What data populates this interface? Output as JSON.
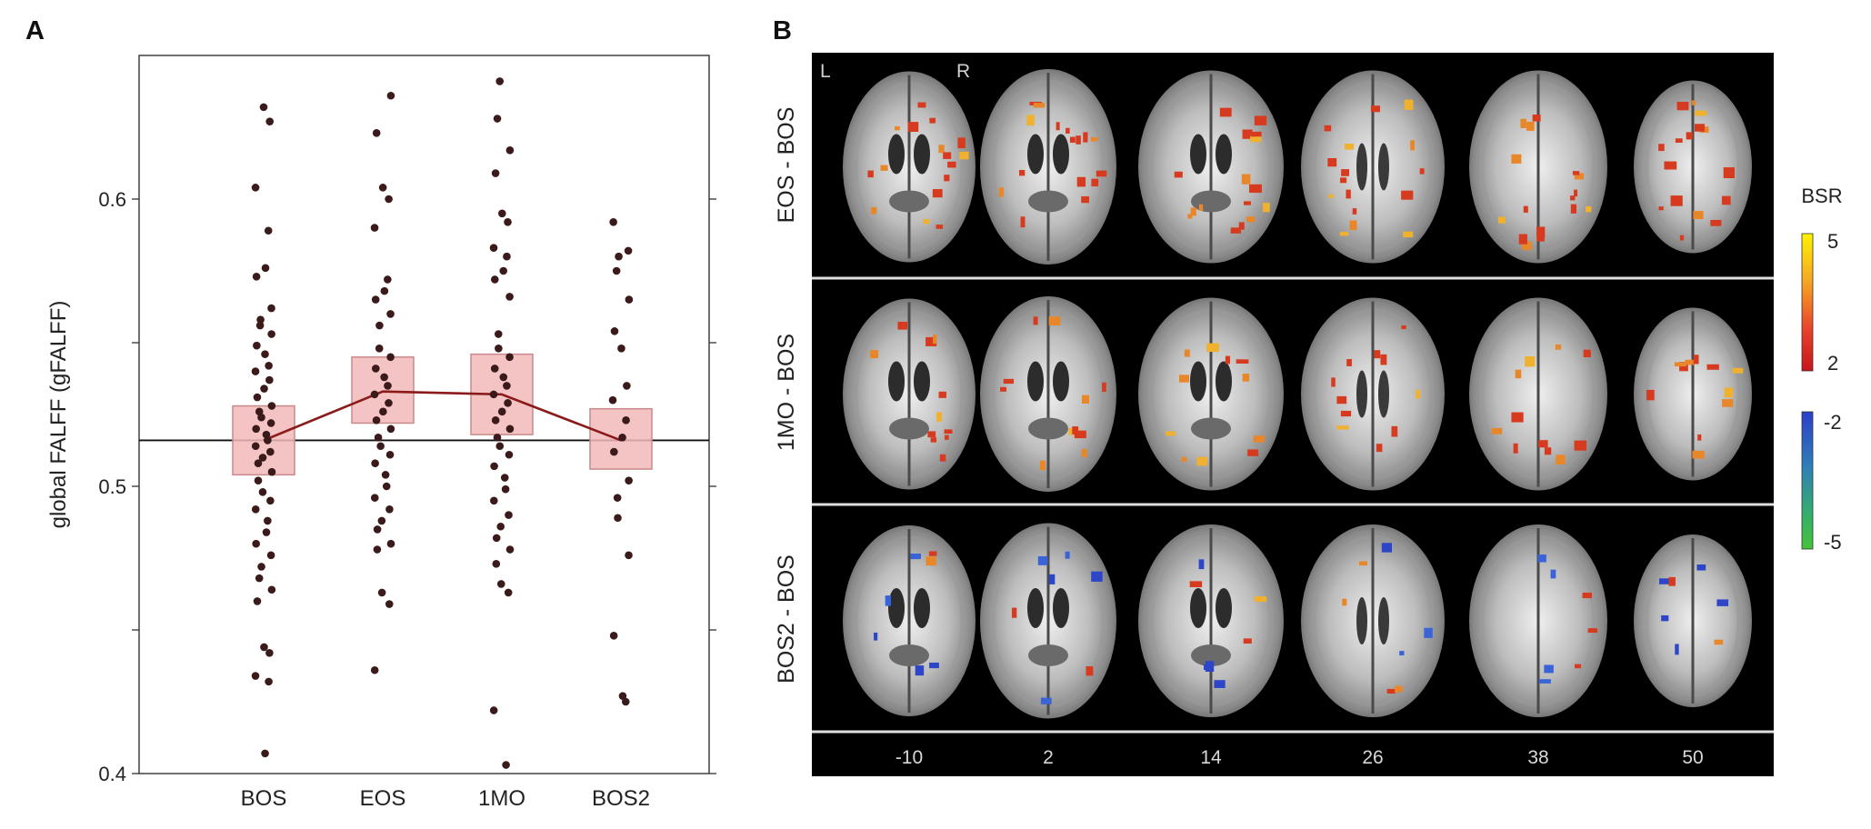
{
  "panels": {
    "a_letter": "A",
    "b_letter": "B"
  },
  "chart_data": {
    "type": "scatter",
    "ylabel": "global FALFF  (gFALFF)",
    "categories": [
      "BOS",
      "EOS",
      "1MO",
      "BOS2"
    ],
    "ylim": [
      0.4,
      0.65
    ],
    "yticks": [
      0.4,
      0.45,
      0.5,
      0.55,
      0.6
    ],
    "ytick_labels": [
      "0.4",
      "",
      "0.5",
      "",
      "0.6"
    ],
    "reference_line": 0.516,
    "means": [
      0.516,
      0.533,
      0.532,
      0.516
    ],
    "ci_low": [
      0.504,
      0.522,
      0.518,
      0.506
    ],
    "ci_high": [
      0.528,
      0.545,
      0.546,
      0.527
    ],
    "points": [
      [
        0.632,
        0.627,
        0.604,
        0.589,
        0.576,
        0.573,
        0.562,
        0.558,
        0.556,
        0.553,
        0.549,
        0.546,
        0.542,
        0.54,
        0.537,
        0.534,
        0.531,
        0.528,
        0.526,
        0.524,
        0.522,
        0.52,
        0.518,
        0.516,
        0.514,
        0.512,
        0.51,
        0.508,
        0.505,
        0.502,
        0.498,
        0.495,
        0.492,
        0.488,
        0.484,
        0.48,
        0.476,
        0.472,
        0.468,
        0.464,
        0.46,
        0.444,
        0.442,
        0.434,
        0.432,
        0.407
      ],
      [
        0.636,
        0.623,
        0.604,
        0.6,
        0.59,
        0.572,
        0.568,
        0.565,
        0.56,
        0.556,
        0.548,
        0.545,
        0.541,
        0.538,
        0.535,
        0.532,
        0.529,
        0.526,
        0.523,
        0.52,
        0.517,
        0.514,
        0.511,
        0.508,
        0.504,
        0.5,
        0.496,
        0.492,
        0.488,
        0.485,
        0.48,
        0.478,
        0.463,
        0.459,
        0.436
      ],
      [
        0.641,
        0.628,
        0.617,
        0.609,
        0.595,
        0.592,
        0.583,
        0.58,
        0.575,
        0.572,
        0.566,
        0.553,
        0.548,
        0.545,
        0.541,
        0.538,
        0.535,
        0.532,
        0.529,
        0.526,
        0.523,
        0.52,
        0.517,
        0.514,
        0.511,
        0.507,
        0.503,
        0.499,
        0.495,
        0.49,
        0.486,
        0.482,
        0.478,
        0.473,
        0.466,
        0.463,
        0.422,
        0.403
      ],
      [
        0.592,
        0.582,
        0.58,
        0.575,
        0.565,
        0.554,
        0.548,
        0.535,
        0.53,
        0.523,
        0.517,
        0.512,
        0.502,
        0.496,
        0.489,
        0.476,
        0.448,
        0.427,
        0.425
      ]
    ]
  },
  "brain": {
    "corner_left": "L",
    "corner_right": "R",
    "rows": [
      "EOS - BOS",
      "1MO - BOS",
      "BOS2 - BOS"
    ],
    "slices": [
      "-10",
      "2",
      "14",
      "26",
      "38",
      "50"
    ],
    "colorbar": {
      "title": "BSR",
      "pos_max": "5",
      "pos_min": "2",
      "neg_min": "-2",
      "neg_max": "-5",
      "pos_colors": [
        "#fff200",
        "#f5a623",
        "#e8422a",
        "#c8151b"
      ],
      "neg_colors": [
        "#2a3fc8",
        "#2f7fb8",
        "#34b06a",
        "#47c23a"
      ]
    }
  }
}
